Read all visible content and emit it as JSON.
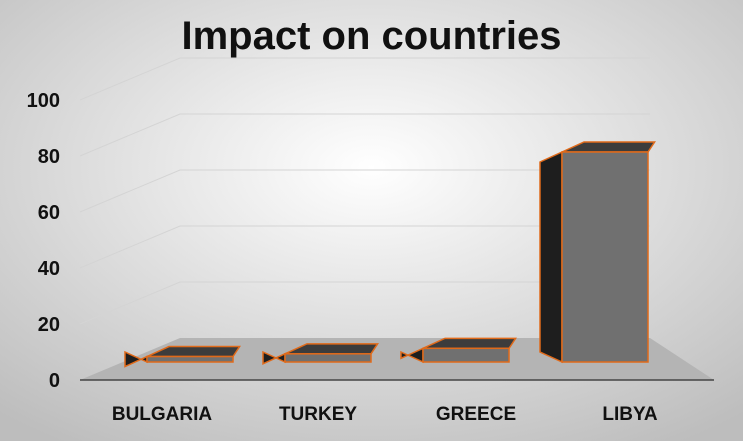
{
  "chart_data": {
    "type": "bar",
    "title": "Impact on countries",
    "categories": [
      "BULGARIA",
      "TURKEY",
      "GREECE",
      "LIBYA"
    ],
    "values": [
      2,
      3,
      5,
      77
    ],
    "ylim": [
      0,
      100
    ],
    "yticks": [
      "0",
      "20",
      "40",
      "60",
      "80",
      "100"
    ],
    "grid": true,
    "legend": "none",
    "colors": {
      "bar_front": "#707070",
      "bar_side": "#1e1e1e",
      "bar_top": "#3c3c3c",
      "bar_outline": "#e06a1a",
      "floor": "#b4b4b4",
      "background_light": "#ffffff",
      "background_dark": "#bdbdbd"
    }
  }
}
